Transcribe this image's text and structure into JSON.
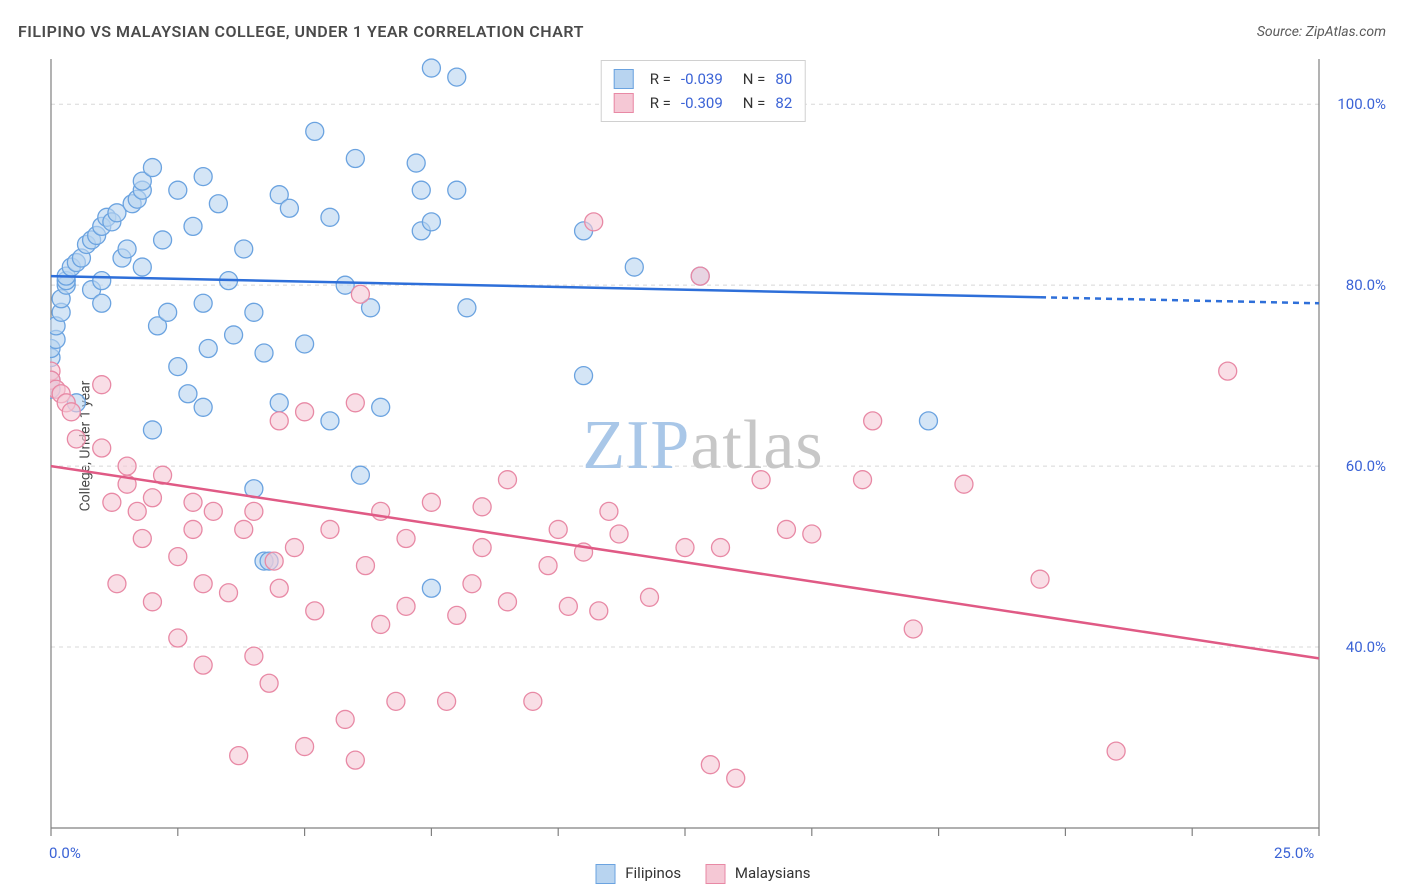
{
  "title": "FILIPINO VS MALAYSIAN COLLEGE, UNDER 1 YEAR CORRELATION CHART",
  "source": "Source: ZipAtlas.com",
  "ylabel": "College, Under 1 year",
  "watermark": {
    "text1": "ZIP",
    "text2": "atlas",
    "color1": "#a9c7e8",
    "color2": "#c7c7c7"
  },
  "chart": {
    "type": "scatter",
    "background_color": "#ffffff",
    "grid_color": "#d8d8d8",
    "grid_dash": "4,4",
    "axis_color": "#808080",
    "tick_color": "#808080",
    "xlim": [
      0,
      25
    ],
    "ylim": [
      20,
      105
    ],
    "x_tick_positions": [
      0,
      2.5,
      5,
      7.5,
      10,
      12.5,
      15,
      17.5,
      20,
      22.5,
      25
    ],
    "x_tick_labels": {
      "0": "0.0%",
      "25": "25.0%"
    },
    "y_grid_positions": [
      40,
      60,
      80,
      100
    ],
    "y_tick_labels": {
      "40": "40.0%",
      "60": "60.0%",
      "80": "80.0%",
      "100": "100.0%"
    },
    "marker_radius": 9,
    "marker_opacity": 0.6,
    "label_fontsize": 15,
    "label_color": "#3b63d6",
    "title_fontsize": 16,
    "series": [
      {
        "name": "Filipinos",
        "color_fill": "#b8d4f0",
        "color_stroke": "#6ba3e0",
        "regression": {
          "slope_per_x": -0.12,
          "y0": 81.0,
          "x_solid_end": 19.5,
          "color": "#2e6fd9",
          "width": 2.5,
          "R": "-0.039",
          "N": "80"
        },
        "points": [
          [
            0.0,
            68.5
          ],
          [
            0.0,
            69.5
          ],
          [
            0.0,
            72.0
          ],
          [
            0.0,
            73.0
          ],
          [
            0.1,
            74.0
          ],
          [
            0.1,
            75.5
          ],
          [
            0.2,
            77.0
          ],
          [
            0.2,
            78.5
          ],
          [
            0.3,
            80.0
          ],
          [
            0.3,
            80.5
          ],
          [
            0.3,
            81.0
          ],
          [
            0.4,
            82.0
          ],
          [
            0.5,
            82.5
          ],
          [
            0.5,
            67.0
          ],
          [
            0.6,
            83.0
          ],
          [
            0.7,
            84.5
          ],
          [
            0.8,
            85.0
          ],
          [
            0.8,
            79.5
          ],
          [
            0.9,
            85.5
          ],
          [
            1.0,
            86.5
          ],
          [
            1.0,
            80.5
          ],
          [
            1.1,
            87.5
          ],
          [
            1.2,
            87.0
          ],
          [
            1.3,
            88.0
          ],
          [
            1.4,
            83.0
          ],
          [
            1.5,
            84.0
          ],
          [
            1.6,
            89.0
          ],
          [
            1.7,
            89.5
          ],
          [
            1.8,
            90.5
          ],
          [
            1.8,
            91.5
          ],
          [
            1.8,
            82.0
          ],
          [
            2.0,
            93.0
          ],
          [
            2.0,
            64.0
          ],
          [
            2.1,
            75.5
          ],
          [
            2.2,
            85.0
          ],
          [
            2.3,
            77.0
          ],
          [
            2.5,
            90.5
          ],
          [
            2.5,
            71.0
          ],
          [
            2.7,
            68.0
          ],
          [
            2.8,
            86.5
          ],
          [
            3.0,
            92.0
          ],
          [
            3.0,
            78.0
          ],
          [
            3.0,
            66.5
          ],
          [
            3.1,
            73.0
          ],
          [
            3.3,
            89.0
          ],
          [
            3.5,
            80.5
          ],
          [
            3.6,
            74.5
          ],
          [
            3.8,
            84.0
          ],
          [
            4.0,
            57.5
          ],
          [
            4.0,
            77.0
          ],
          [
            4.2,
            72.5
          ],
          [
            4.2,
            49.5
          ],
          [
            4.5,
            90.0
          ],
          [
            4.5,
            67.0
          ],
          [
            4.7,
            88.5
          ],
          [
            5.0,
            73.5
          ],
          [
            5.2,
            97.0
          ],
          [
            5.5,
            65.0
          ],
          [
            5.5,
            87.5
          ],
          [
            5.8,
            80.0
          ],
          [
            6.0,
            94.0
          ],
          [
            6.1,
            59.0
          ],
          [
            6.3,
            77.5
          ],
          [
            6.5,
            66.5
          ],
          [
            7.2,
            93.5
          ],
          [
            7.3,
            90.5
          ],
          [
            7.3,
            86.0
          ],
          [
            7.5,
            87.0
          ],
          [
            7.5,
            104.0
          ],
          [
            7.5,
            46.5
          ],
          [
            8.0,
            103.0
          ],
          [
            8.0,
            90.5
          ],
          [
            8.2,
            77.5
          ],
          [
            10.5,
            70.0
          ],
          [
            10.5,
            86.0
          ],
          [
            11.5,
            82.0
          ],
          [
            12.8,
            81.0
          ],
          [
            17.3,
            65.0
          ],
          [
            4.3,
            49.5
          ],
          [
            1.0,
            78.0
          ]
        ]
      },
      {
        "name": "Malaysians",
        "color_fill": "#f5c8d5",
        "color_stroke": "#e889a5",
        "regression": {
          "slope_per_x": -0.85,
          "y0": 60.0,
          "x_solid_end": 25.0,
          "color": "#e05a85",
          "width": 2.5,
          "R": "-0.309",
          "N": "82"
        },
        "points": [
          [
            0.0,
            70.5
          ],
          [
            0.0,
            69.5
          ],
          [
            0.1,
            68.5
          ],
          [
            0.2,
            68.0
          ],
          [
            0.3,
            67.0
          ],
          [
            0.4,
            66.0
          ],
          [
            0.5,
            63.0
          ],
          [
            1.0,
            69.0
          ],
          [
            1.0,
            62.0
          ],
          [
            1.2,
            56.0
          ],
          [
            1.5,
            60.0
          ],
          [
            1.5,
            58.0
          ],
          [
            1.7,
            55.0
          ],
          [
            1.8,
            52.0
          ],
          [
            2.0,
            56.5
          ],
          [
            2.0,
            45.0
          ],
          [
            2.2,
            59.0
          ],
          [
            2.5,
            50.0
          ],
          [
            2.5,
            41.0
          ],
          [
            2.8,
            56.0
          ],
          [
            3.0,
            47.0
          ],
          [
            3.0,
            38.0
          ],
          [
            3.2,
            55.0
          ],
          [
            3.5,
            46.0
          ],
          [
            3.7,
            28.0
          ],
          [
            3.8,
            53.0
          ],
          [
            4.0,
            39.0
          ],
          [
            4.0,
            55.0
          ],
          [
            4.3,
            36.0
          ],
          [
            4.4,
            49.5
          ],
          [
            4.5,
            46.5
          ],
          [
            4.8,
            51.0
          ],
          [
            5.0,
            29.0
          ],
          [
            5.0,
            66.0
          ],
          [
            5.2,
            44.0
          ],
          [
            5.5,
            53.0
          ],
          [
            5.8,
            32.0
          ],
          [
            6.0,
            67.0
          ],
          [
            6.0,
            27.5
          ],
          [
            6.1,
            79.0
          ],
          [
            6.2,
            49.0
          ],
          [
            6.5,
            55.0
          ],
          [
            6.8,
            34.0
          ],
          [
            7.0,
            52.0
          ],
          [
            7.0,
            44.5
          ],
          [
            7.5,
            56.0
          ],
          [
            7.8,
            34.0
          ],
          [
            8.0,
            43.5
          ],
          [
            8.3,
            47.0
          ],
          [
            8.5,
            55.5
          ],
          [
            8.5,
            51.0
          ],
          [
            9.0,
            45.0
          ],
          [
            9.0,
            58.5
          ],
          [
            9.5,
            34.0
          ],
          [
            9.8,
            49.0
          ],
          [
            10.0,
            53.0
          ],
          [
            10.2,
            44.5
          ],
          [
            10.5,
            50.5
          ],
          [
            10.7,
            87.0
          ],
          [
            10.8,
            44.0
          ],
          [
            11.0,
            55.0
          ],
          [
            11.2,
            52.5
          ],
          [
            11.8,
            45.5
          ],
          [
            12.5,
            51.0
          ],
          [
            12.8,
            81.0
          ],
          [
            13.0,
            27.0
          ],
          [
            13.2,
            51.0
          ],
          [
            13.5,
            25.5
          ],
          [
            14.5,
            53.0
          ],
          [
            14.0,
            58.5
          ],
          [
            15.0,
            52.5
          ],
          [
            16.0,
            58.5
          ],
          [
            16.2,
            65.0
          ],
          [
            17.0,
            42.0
          ],
          [
            18.0,
            58.0
          ],
          [
            19.5,
            47.5
          ],
          [
            21.0,
            28.5
          ],
          [
            23.2,
            70.5
          ],
          [
            6.5,
            42.5
          ],
          [
            4.5,
            65.0
          ],
          [
            2.8,
            53.0
          ],
          [
            1.3,
            47.0
          ]
        ]
      }
    ]
  },
  "bottom_legend": {
    "label1": "Filipinos",
    "label2": "Malaysians"
  }
}
